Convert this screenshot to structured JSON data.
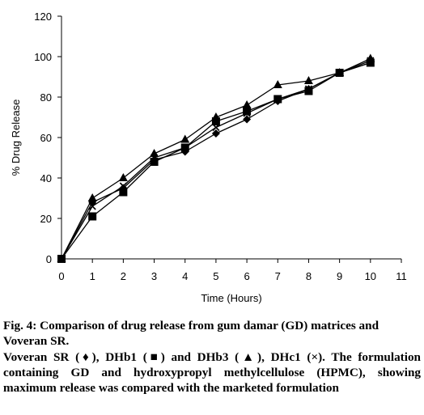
{
  "chart_data": {
    "type": "line",
    "title": "",
    "xlabel": "Time (Hours)",
    "ylabel": "% Drug Release",
    "xlim": [
      0,
      11
    ],
    "ylim": [
      0,
      120
    ],
    "x_ticks": [
      0,
      1,
      2,
      3,
      4,
      5,
      6,
      7,
      8,
      9,
      10,
      11
    ],
    "y_ticks": [
      0,
      20,
      40,
      60,
      80,
      100,
      120
    ],
    "grid": false,
    "legend": "none",
    "x": [
      0,
      1,
      2,
      3,
      4,
      5,
      6,
      7,
      8,
      9,
      10
    ],
    "series": [
      {
        "marker": "diamond",
        "values": [
          0,
          28,
          35,
          49,
          53,
          62,
          69,
          78,
          84,
          92,
          97
        ],
        "color": "#000000"
      },
      {
        "marker": "square",
        "values": [
          0,
          21,
          33,
          48,
          55,
          68,
          73,
          79,
          83,
          92,
          97
        ],
        "color": "#000000"
      },
      {
        "marker": "triangle",
        "values": [
          0,
          30,
          40,
          52,
          59,
          70,
          76,
          86,
          88,
          92,
          99
        ],
        "color": "#000000"
      },
      {
        "marker": "cross",
        "values": [
          0,
          26,
          36,
          50,
          55,
          65,
          72,
          79,
          84,
          92,
          98
        ],
        "color": "#000000"
      }
    ]
  },
  "caption": {
    "fig_label": "Fig. 4:",
    "title": "Comparison of drug release from gum damar (GD) matrices and Voveran SR.",
    "body": "Voveran SR (♦), DHb1 (■) and DHb3 (▲), DHc1 (×). The formulation containing GD and hydroxypropyl methylcellulose (HPMC), showing maximum release was compared with the marketed formulation"
  }
}
